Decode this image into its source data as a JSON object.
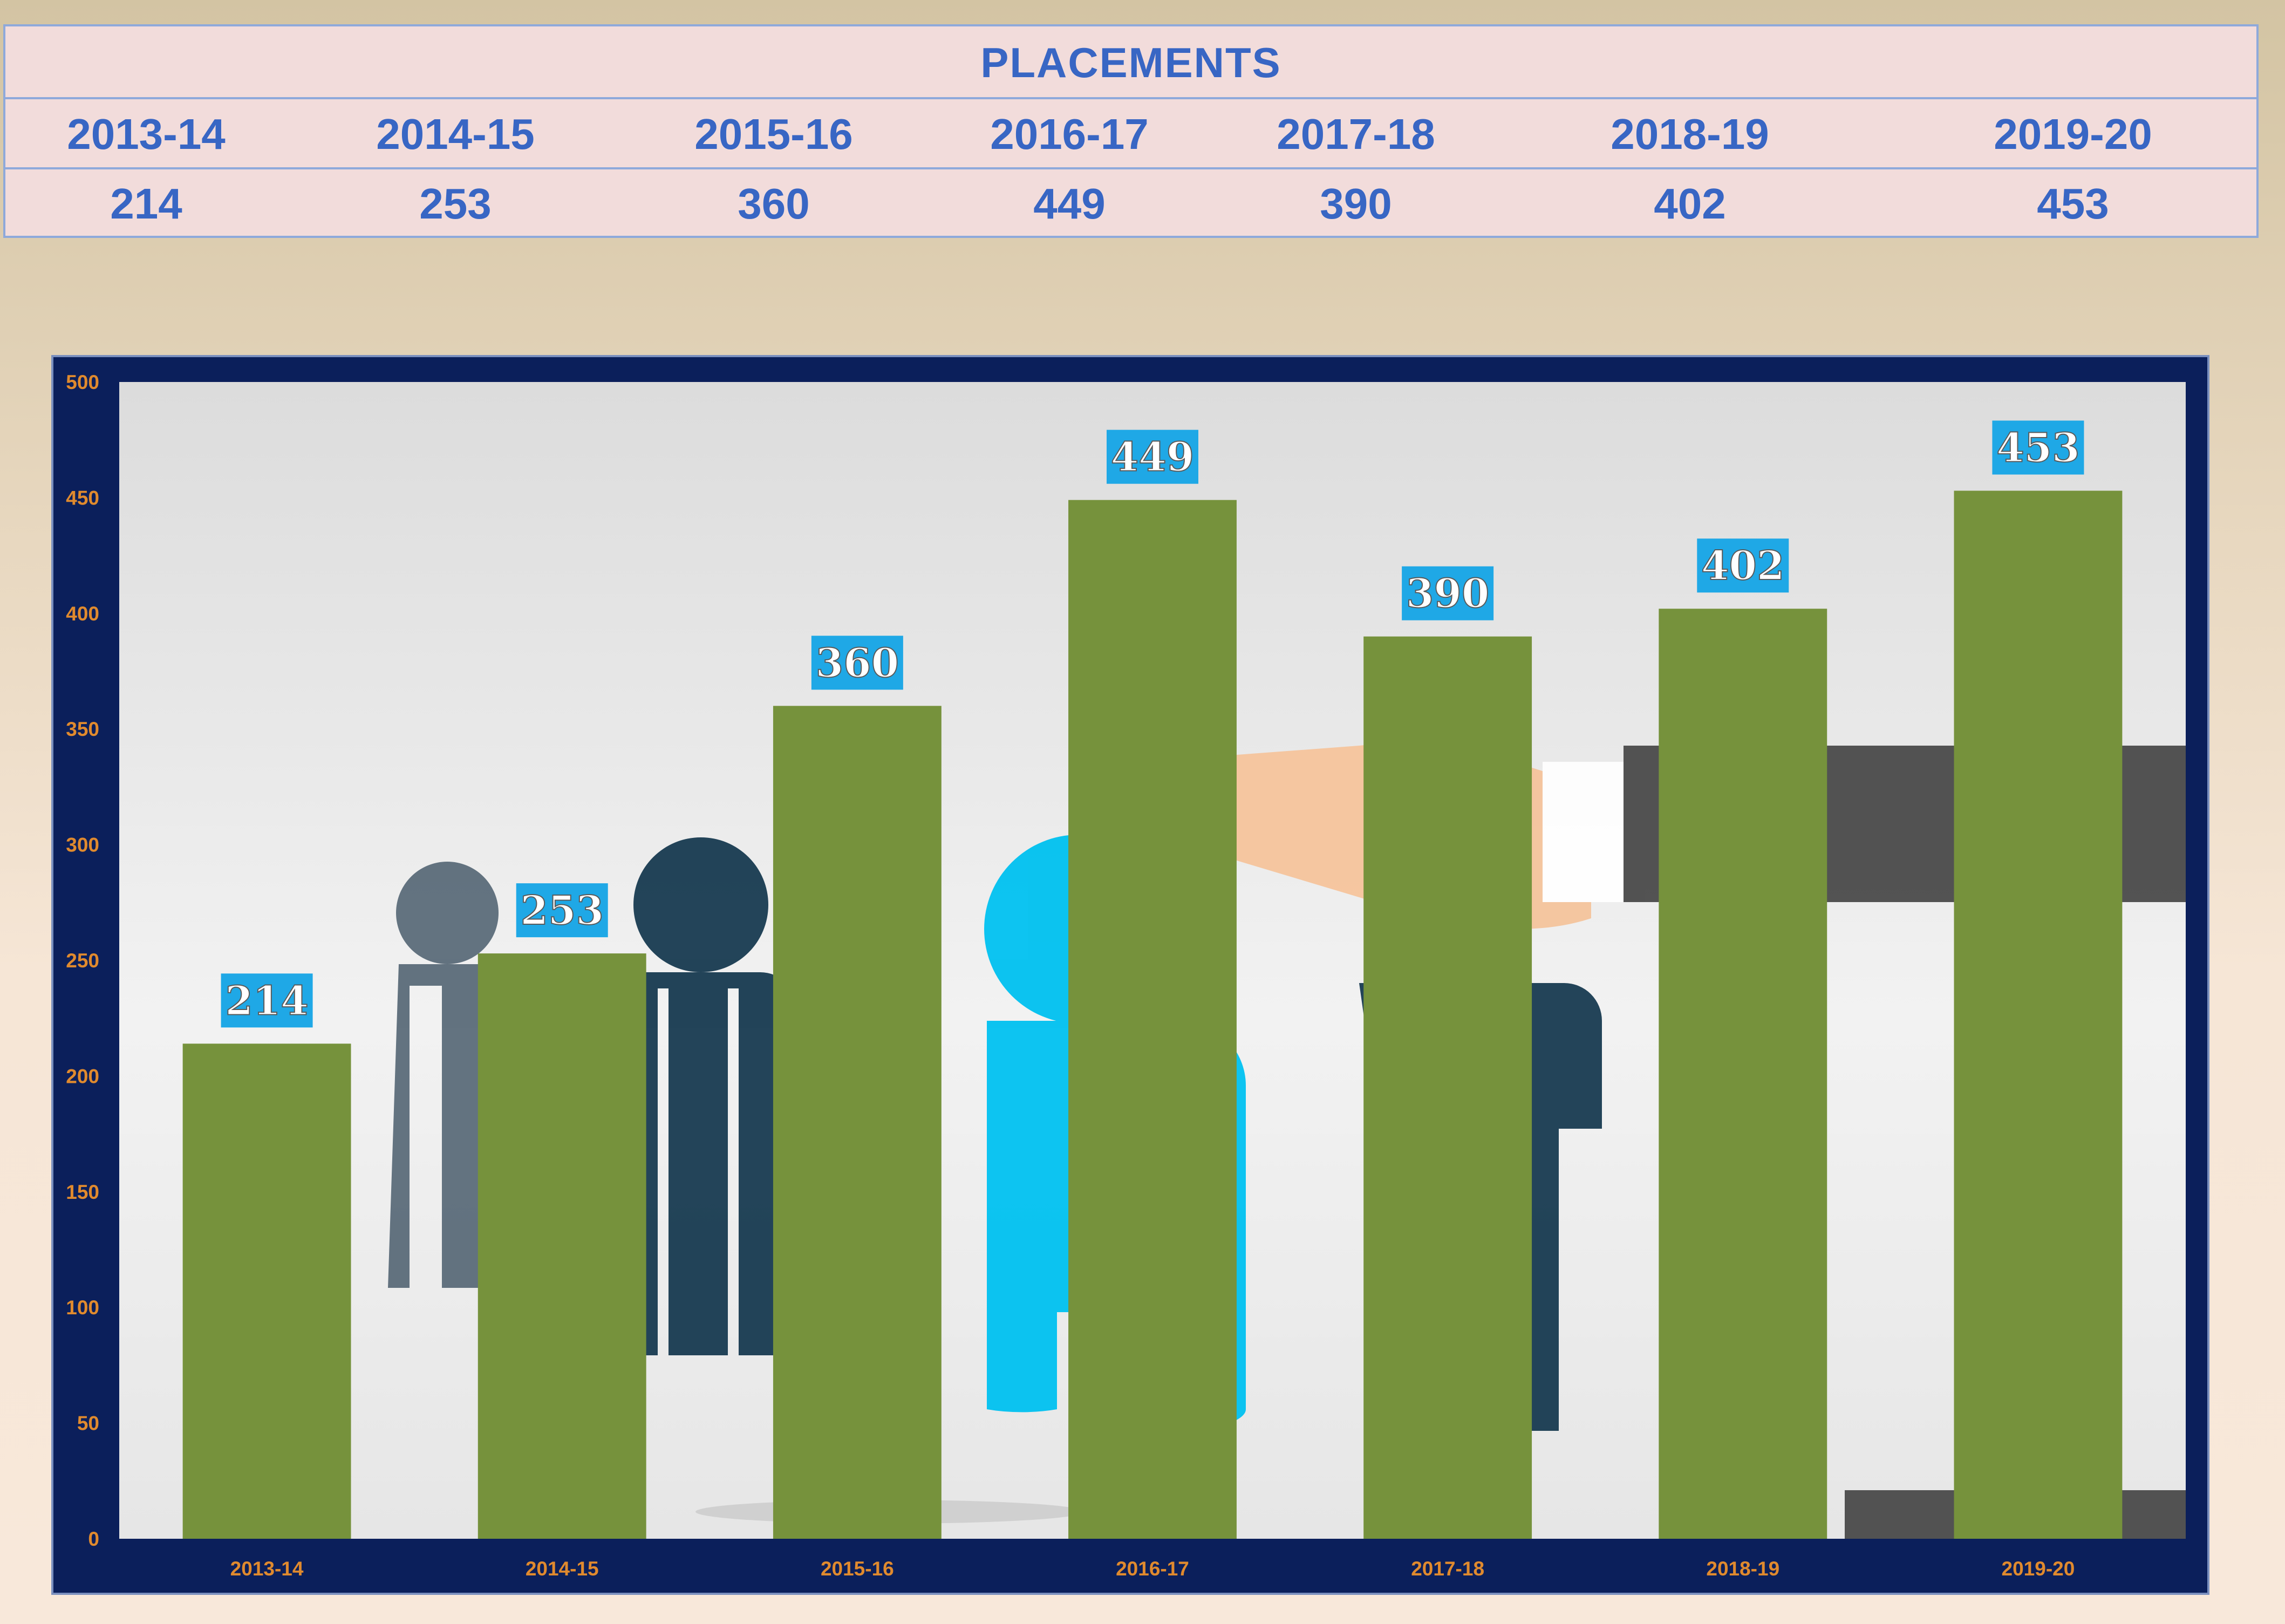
{
  "table": {
    "title": "PLACEMENTS",
    "years": [
      "2013-14",
      "2014-15",
      "2015-16",
      "2016-17",
      "2017-18",
      "2018-19",
      "2019-20"
    ],
    "values": [
      "214",
      "253",
      "360",
      "449",
      "390",
      "402",
      "453"
    ]
  },
  "chart_data": {
    "type": "bar",
    "title": "",
    "xlabel": "",
    "ylabel": "",
    "categories": [
      "2013-14",
      "2014-15",
      "2015-16",
      "2016-17",
      "2017-18",
      "2018-19",
      "2019-20"
    ],
    "values": [
      214,
      253,
      360,
      449,
      390,
      402,
      453
    ],
    "ylim": [
      0,
      500
    ],
    "yticks": [
      0,
      50,
      100,
      150,
      200,
      250,
      300,
      350,
      400,
      450,
      500
    ],
    "grid": false,
    "legend": "none",
    "colors": {
      "bar": "#76923c",
      "axis_text": "#e08a2e",
      "data_label_bg": "#1fa8e6",
      "data_label_text": "#ffffff",
      "frame": "#0b1f5b"
    }
  }
}
